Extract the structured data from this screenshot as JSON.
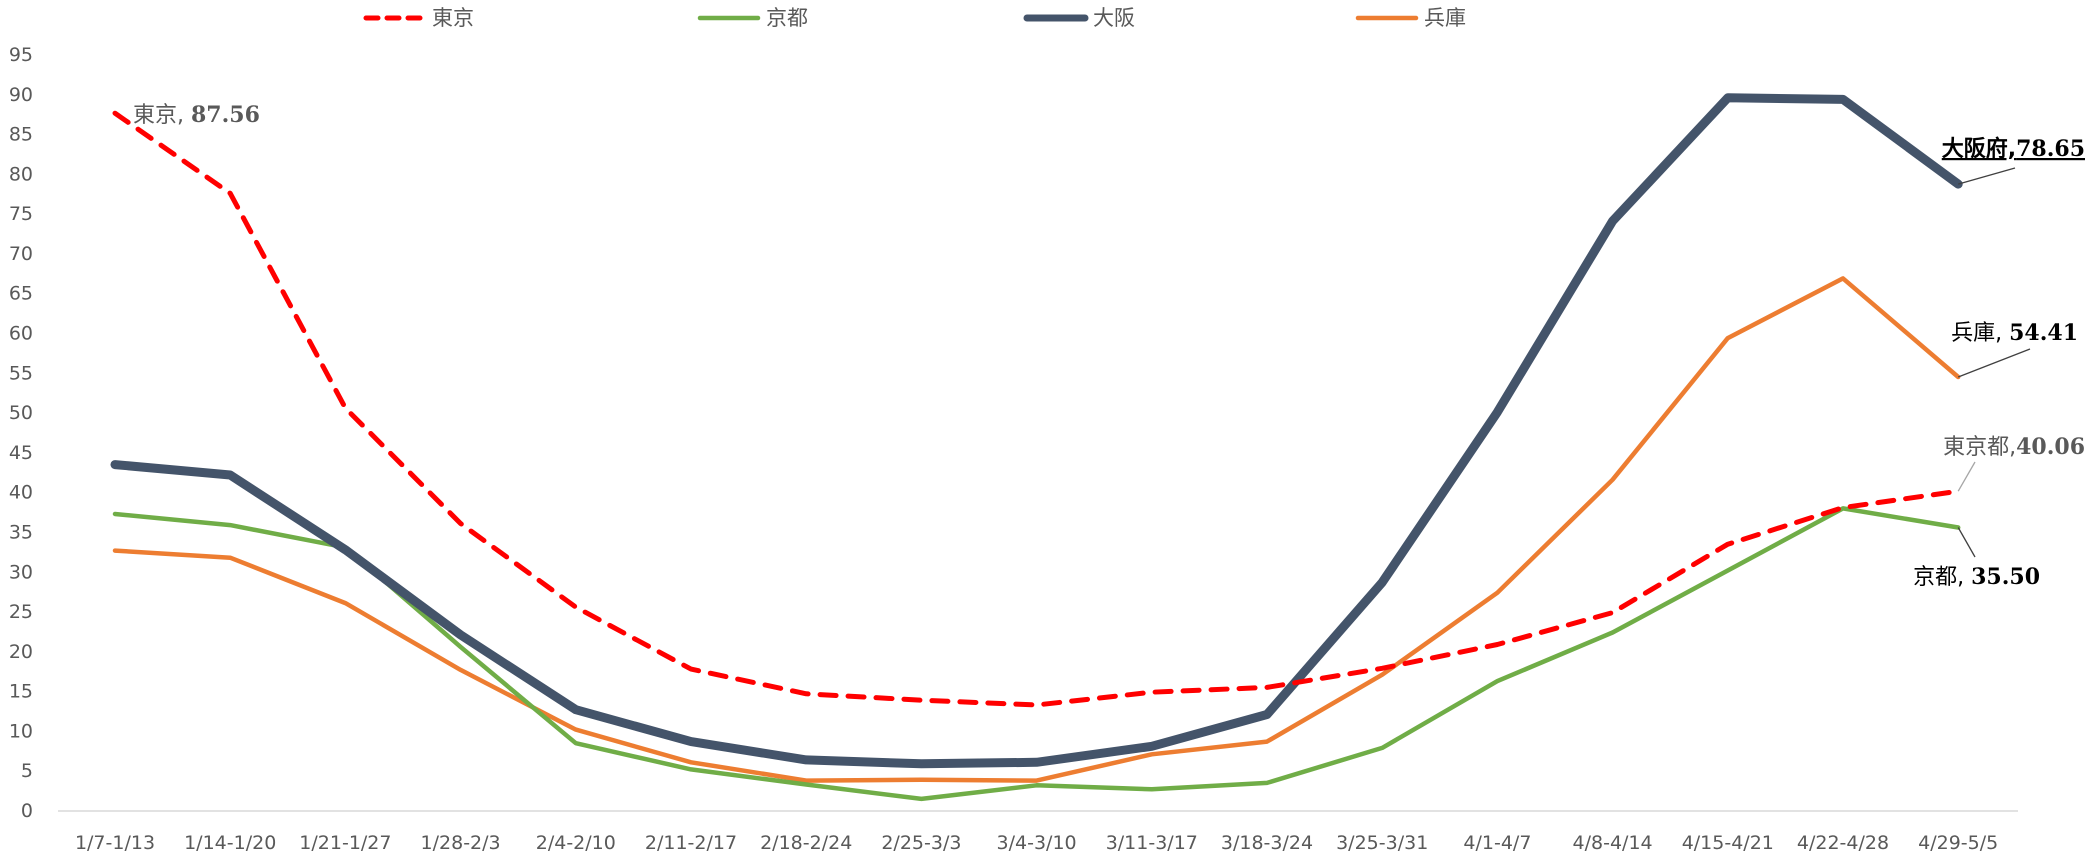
{
  "chart_data": {
    "type": "line",
    "categories": [
      "1/7-1/13",
      "1/14-1/20",
      "1/21-1/27",
      "1/28-2/3",
      "2/4-2/10",
      "2/11-2/17",
      "2/18-2/24",
      "2/25-3/3",
      "3/4-3/10",
      "3/11-3/17",
      "3/18-3/24",
      "3/25-3/31",
      "4/1-4/7",
      "4/8-4/14",
      "4/15-4/21",
      "4/22-4/28",
      "4/29-5/5"
    ],
    "ylim": [
      0,
      95
    ],
    "yticks": [
      0,
      5,
      10,
      15,
      20,
      25,
      30,
      35,
      40,
      45,
      50,
      55,
      60,
      65,
      70,
      75,
      80,
      85,
      90,
      95
    ],
    "grid": false,
    "legend_position": "top",
    "series": [
      {
        "key": "tokyo",
        "name": "東京",
        "color": "#ff0000",
        "dashed": true,
        "values": [
          87.56,
          77.5,
          50.5,
          36.0,
          25.5,
          17.7,
          14.6,
          13.8,
          13.2,
          14.8,
          15.4,
          17.8,
          20.8,
          24.8,
          33.4,
          38.0,
          40.06
        ]
      },
      {
        "key": "kyoto",
        "name": "京都",
        "color": "#70ad47",
        "dashed": false,
        "values": [
          37.2,
          35.8,
          33.0,
          20.5,
          8.4,
          5.1,
          3.2,
          1.4,
          3.1,
          2.6,
          3.4,
          7.8,
          16.2,
          22.3,
          30.1,
          37.9,
          35.5
        ]
      },
      {
        "key": "osaka",
        "name": "大阪",
        "color": "#44546a",
        "dashed": false,
        "values": [
          43.4,
          42.1,
          32.7,
          22.0,
          12.6,
          8.6,
          6.3,
          5.8,
          6.0,
          8.0,
          12.0,
          28.6,
          50.0,
          74.0,
          89.5,
          89.3,
          78.65
        ]
      },
      {
        "key": "hyogo",
        "name": "兵庫",
        "color": "#ed7d31",
        "dashed": false,
        "values": [
          32.6,
          31.7,
          26.0,
          17.6,
          10.1,
          6.0,
          3.7,
          3.8,
          3.7,
          7.0,
          8.6,
          17.0,
          27.3,
          41.5,
          59.3,
          66.8,
          54.41
        ]
      }
    ],
    "annotations": [
      {
        "key": "tokyo-start",
        "series": "tokyo",
        "index": 0,
        "name": "東京, ",
        "value": "87.56"
      },
      {
        "key": "osaka-end",
        "series": "osaka",
        "index": 16,
        "name": "大阪府,",
        "value": "78.65"
      },
      {
        "key": "hyogo-end",
        "series": "hyogo",
        "index": 16,
        "name": "兵庫, ",
        "value": "54.41"
      },
      {
        "key": "tokyo-end",
        "series": "tokyo",
        "index": 16,
        "name": "東京都,",
        "value": "40.06"
      },
      {
        "key": "kyoto-end",
        "series": "kyoto",
        "index": 16,
        "name": "京都, ",
        "value": "35.50"
      }
    ]
  }
}
